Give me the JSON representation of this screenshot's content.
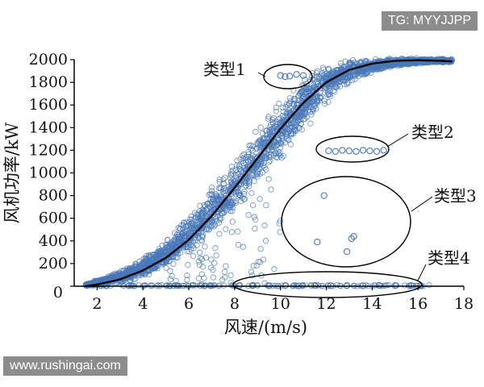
{
  "watermarks": {
    "top": "TG: MYYJJPP",
    "bottom": "www.rushingai.com"
  },
  "colors": {
    "points": "#4a78b8",
    "curve": "#000000",
    "axis": "#000000",
    "watermark_bg": "#8c8c8c"
  },
  "chart_data": {
    "type": "scatter",
    "title": "",
    "xlabel": "风速/(m/s)",
    "ylabel": "风机功率/kW",
    "xlim": [
      1,
      18
    ],
    "ylim": [
      0,
      2000
    ],
    "xticks": [
      2,
      4,
      6,
      8,
      10,
      12,
      14,
      16,
      18
    ],
    "yticks": [
      0,
      200,
      400,
      600,
      800,
      1000,
      1200,
      1400,
      1600,
      1800,
      2000
    ],
    "grid": false,
    "curve": {
      "x": [
        1.5,
        2,
        3,
        4,
        5,
        6,
        7,
        8,
        9,
        10,
        11,
        12,
        13,
        14,
        15,
        16,
        17,
        17.5
      ],
      "y": [
        0,
        15,
        60,
        140,
        250,
        410,
        620,
        870,
        1130,
        1390,
        1620,
        1800,
        1910,
        1965,
        1990,
        1995,
        1990,
        1985
      ]
    },
    "scatter_band": {
      "x": [
        1.5,
        2,
        3,
        4,
        5,
        6,
        7,
        8,
        9,
        10,
        11,
        12,
        13,
        14,
        15,
        16,
        17,
        17.5
      ],
      "low": [
        0,
        0,
        20,
        60,
        140,
        260,
        420,
        600,
        860,
        1100,
        1350,
        1600,
        1780,
        1880,
        1940,
        1960,
        1970,
        1970
      ],
      "high": [
        20,
        60,
        140,
        260,
        420,
        640,
        880,
        1140,
        1400,
        1640,
        1860,
        1990,
        2010,
        2015,
        2015,
        2015,
        2010,
        2010
      ]
    },
    "annotations": [
      {
        "label": "类型1",
        "description_x": [
          9.8,
          11
        ],
        "description_y": [
          1850,
          1870
        ],
        "points": [
          [
            10.0,
            1860
          ],
          [
            10.2,
            1850
          ],
          [
            10.4,
            1855
          ],
          [
            10.7,
            1870
          ],
          [
            11.0,
            1860
          ]
        ]
      },
      {
        "label": "类型2",
        "description_x": [
          12.0,
          14.6
        ],
        "description_y": [
          1190,
          1200
        ],
        "points": [
          [
            12.1,
            1195
          ],
          [
            12.4,
            1190
          ],
          [
            12.7,
            1200
          ],
          [
            13.0,
            1195
          ],
          [
            13.3,
            1190
          ],
          [
            13.6,
            1200
          ],
          [
            13.9,
            1195
          ],
          [
            14.2,
            1190
          ],
          [
            14.5,
            1200
          ]
        ]
      },
      {
        "label": "类型3",
        "description_x": [
          11,
          14
        ],
        "description_y": [
          300,
          850
        ],
        "points": [
          [
            11.9,
            800
          ],
          [
            11.6,
            390
          ],
          [
            13.1,
            420
          ],
          [
            12.9,
            305
          ],
          [
            13.2,
            440
          ]
        ]
      },
      {
        "label": "类型4",
        "description_x": [
          8,
          16.2
        ],
        "description_y": [
          0,
          20
        ],
        "points": [
          [
            8.2,
            5
          ],
          [
            8.8,
            8
          ],
          [
            9.5,
            4
          ],
          [
            10.2,
            6
          ],
          [
            10.8,
            3
          ],
          [
            11.5,
            7
          ],
          [
            12.2,
            5
          ],
          [
            12.9,
            6
          ],
          [
            13.6,
            4
          ],
          [
            14.3,
            8
          ],
          [
            15.0,
            5
          ],
          [
            15.7,
            6
          ],
          [
            16.1,
            4
          ]
        ]
      }
    ]
  }
}
